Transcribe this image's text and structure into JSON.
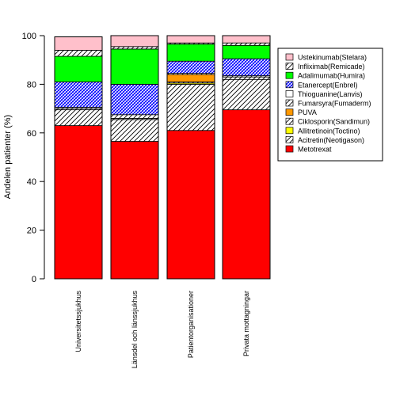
{
  "chart_data": {
    "type": "bar",
    "stacked": true,
    "ylabel": "Andelen patienter (%)",
    "xlabel": "",
    "ylim": [
      0,
      100
    ],
    "yticks": [
      0,
      20,
      40,
      60,
      80,
      100
    ],
    "grid": false,
    "legend_position": "right",
    "categories": [
      "Universitetssjukhus",
      "Länsdel och länssjukhus",
      "Patientorganisationer",
      "Privata mottagningar"
    ],
    "series": [
      {
        "name": "Metotrexat",
        "color": "#ff0000",
        "pattern": "solid",
        "values": [
          63,
          56.5,
          61,
          69.5
        ]
      },
      {
        "name": "Acitretin(Neotigason)",
        "color": "#ffffff",
        "pattern": "hatch-diag",
        "values": [
          6.5,
          9,
          19,
          12.5
        ]
      },
      {
        "name": "Allitretinoin(Toctino)",
        "color": "#ffff00",
        "pattern": "solid",
        "values": [
          0,
          0,
          0.5,
          0
        ]
      },
      {
        "name": "Ciklosporin(Sandimun)",
        "color": "#ffffff",
        "pattern": "hatch-diag",
        "values": [
          0.5,
          0.5,
          0.5,
          1
        ]
      },
      {
        "name": "PUVA",
        "color": "#ff9900",
        "pattern": "solid",
        "values": [
          0,
          0,
          3,
          0
        ]
      },
      {
        "name": "Fumarsyra(Fumaderm)",
        "color": "#ffffff",
        "pattern": "hatch-diag",
        "values": [
          0.5,
          1.5,
          0.5,
          0.5
        ]
      },
      {
        "name": "Thioguanine(Lanvis)",
        "color": "#ffffff",
        "pattern": "solid",
        "values": [
          0,
          0,
          0,
          0
        ]
      },
      {
        "name": "Etanercept(Enbrel)",
        "color": "#0000ff",
        "pattern": "hatch-blue",
        "values": [
          10.5,
          12.5,
          5,
          7
        ]
      },
      {
        "name": "Adalimumab(Humira)",
        "color": "#00ff00",
        "pattern": "solid",
        "values": [
          10.5,
          14.5,
          7,
          5.5
        ]
      },
      {
        "name": "Infliximab(Remicade)",
        "color": "#ffffff",
        "pattern": "hatch-diag",
        "values": [
          2.5,
          1,
          0.5,
          1
        ]
      },
      {
        "name": "Ustekinumab(Stelara)",
        "color": "#ffc0cb",
        "pattern": "solid",
        "values": [
          5.5,
          4.5,
          3,
          3
        ]
      }
    ]
  }
}
